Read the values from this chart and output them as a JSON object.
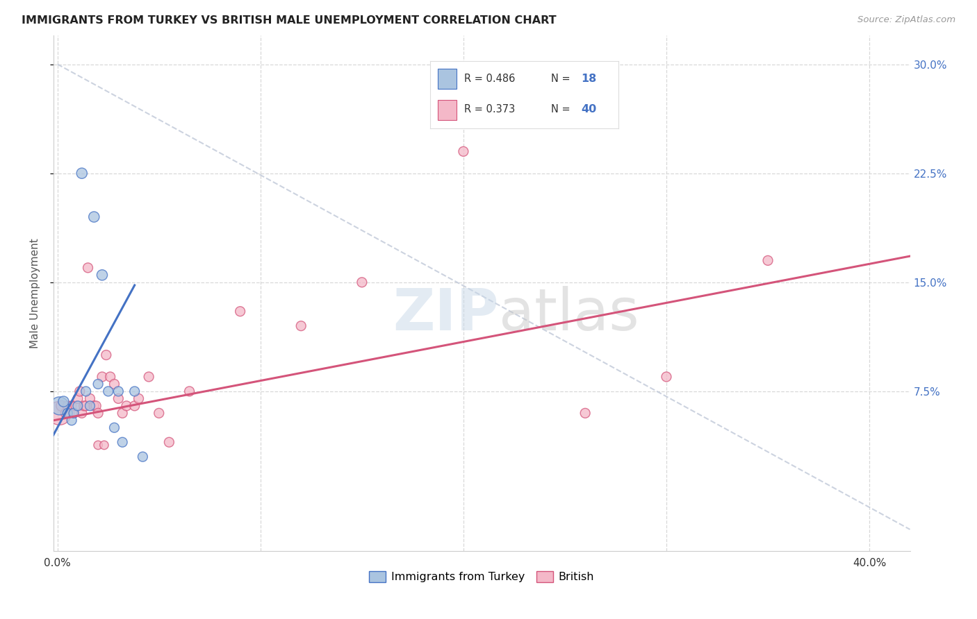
{
  "title": "IMMIGRANTS FROM TURKEY VS BRITISH MALE UNEMPLOYMENT CORRELATION CHART",
  "source": "Source: ZipAtlas.com",
  "ylabel": "Male Unemployment",
  "ytick_values": [
    0.075,
    0.15,
    0.225,
    0.3
  ],
  "ytick_labels": [
    "7.5%",
    "15.0%",
    "22.5%",
    "30.0%"
  ],
  "xtick_values": [
    0.0,
    0.1,
    0.2,
    0.3,
    0.4
  ],
  "xtick_labels": [
    "0.0%",
    "",
    "",
    "",
    "40.0%"
  ],
  "xlim": [
    -0.002,
    0.42
  ],
  "ylim": [
    -0.035,
    0.32
  ],
  "legend_R1": "R = 0.486",
  "legend_N1": "18",
  "legend_R2": "R = 0.373",
  "legend_N2": "40",
  "legend_label1": "Immigrants from Turkey",
  "legend_label2": "British",
  "color_blue": "#aac4e0",
  "color_blue_dark": "#4472c4",
  "color_pink": "#f4b8c8",
  "color_pink_dark": "#d4547a",
  "color_dashed": "#c0c8d8",
  "background_color": "#ffffff",
  "grid_color": "#d8d8d8",
  "blue_scatter_x": [
    0.001,
    0.003,
    0.005,
    0.007,
    0.008,
    0.01,
    0.012,
    0.014,
    0.016,
    0.018,
    0.02,
    0.022,
    0.025,
    0.028,
    0.03,
    0.032,
    0.038,
    0.042
  ],
  "blue_scatter_y": [
    0.065,
    0.068,
    0.06,
    0.055,
    0.06,
    0.065,
    0.225,
    0.075,
    0.065,
    0.195,
    0.08,
    0.155,
    0.075,
    0.05,
    0.075,
    0.04,
    0.075,
    0.03
  ],
  "blue_scatter_s": [
    350,
    120,
    100,
    100,
    100,
    100,
    120,
    100,
    100,
    120,
    100,
    120,
    100,
    100,
    100,
    100,
    100,
    100
  ],
  "pink_scatter_x": [
    0.001,
    0.002,
    0.004,
    0.005,
    0.006,
    0.007,
    0.008,
    0.009,
    0.01,
    0.011,
    0.012,
    0.013,
    0.014,
    0.015,
    0.016,
    0.018,
    0.019,
    0.02,
    0.022,
    0.024,
    0.026,
    0.028,
    0.03,
    0.032,
    0.034,
    0.038,
    0.04,
    0.045,
    0.05,
    0.055,
    0.065,
    0.09,
    0.12,
    0.15,
    0.2,
    0.26,
    0.3,
    0.35,
    0.02,
    0.023
  ],
  "pink_scatter_y": [
    0.06,
    0.065,
    0.06,
    0.065,
    0.06,
    0.065,
    0.06,
    0.065,
    0.07,
    0.075,
    0.06,
    0.065,
    0.065,
    0.16,
    0.07,
    0.065,
    0.065,
    0.06,
    0.085,
    0.1,
    0.085,
    0.08,
    0.07,
    0.06,
    0.065,
    0.065,
    0.07,
    0.085,
    0.06,
    0.04,
    0.075,
    0.13,
    0.12,
    0.15,
    0.24,
    0.06,
    0.085,
    0.165,
    0.038,
    0.038
  ],
  "pink_scatter_s": [
    600,
    120,
    100,
    100,
    100,
    100,
    100,
    100,
    100,
    100,
    100,
    100,
    100,
    100,
    100,
    100,
    100,
    100,
    100,
    100,
    100,
    100,
    100,
    100,
    100,
    100,
    100,
    100,
    100,
    100,
    100,
    100,
    100,
    100,
    100,
    100,
    100,
    100,
    80,
    80
  ],
  "blue_line_x": [
    -0.002,
    0.038
  ],
  "blue_line_y": [
    0.045,
    0.148
  ],
  "pink_line_x": [
    -0.002,
    0.42
  ],
  "pink_line_y": [
    0.055,
    0.168
  ],
  "diag_line_x": [
    0.0,
    0.42
  ],
  "diag_line_y": [
    0.3,
    -0.02
  ]
}
